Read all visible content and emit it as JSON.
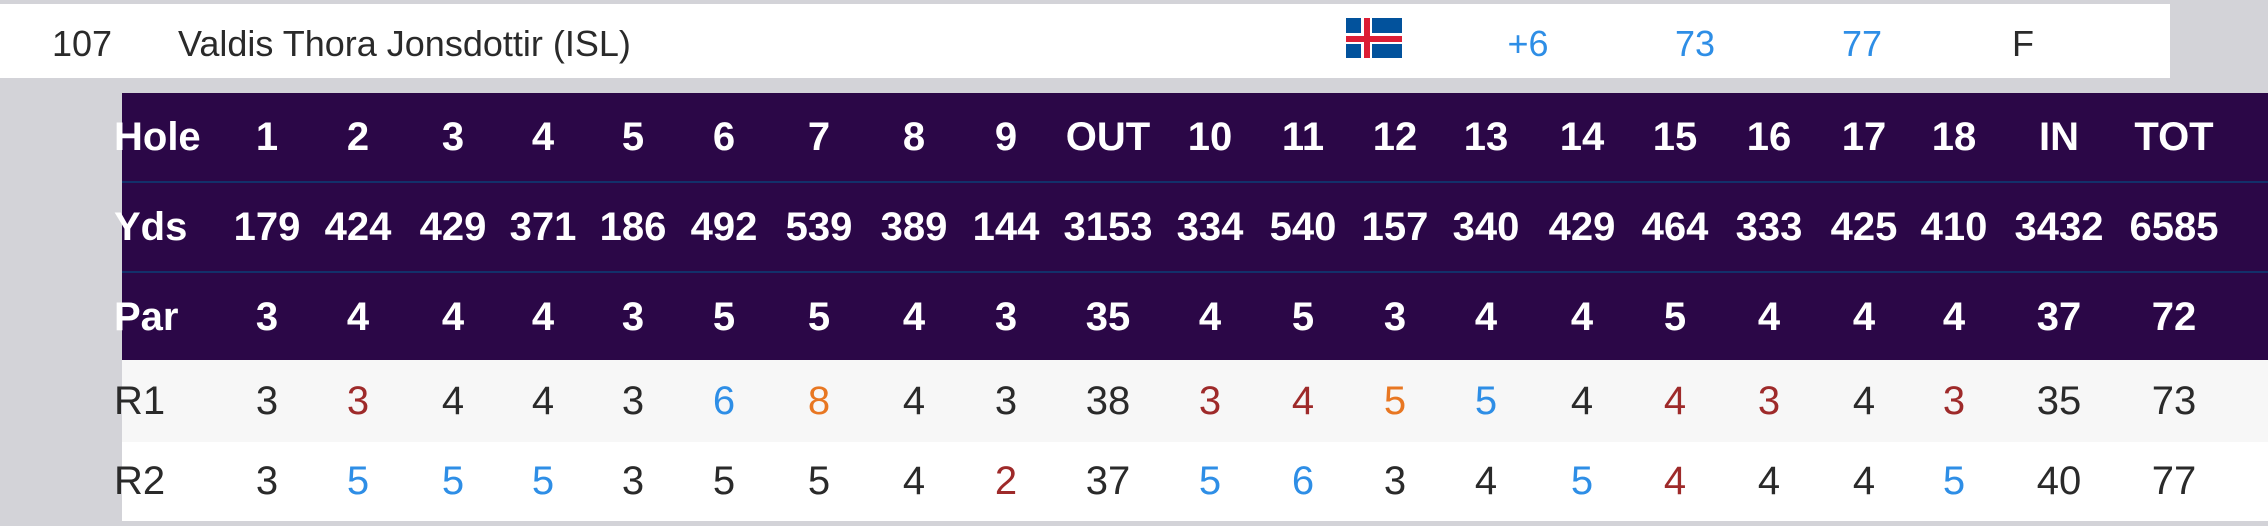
{
  "player": {
    "position": "107",
    "name": "Valdis Thora Jonsdottir (ISL)",
    "country_flag": "iceland-flag-icon",
    "to_par": "+6",
    "round1_total": "73",
    "round2_total": "77",
    "status": "F"
  },
  "scorecard": {
    "columns": [
      "Hole",
      "1",
      "2",
      "3",
      "4",
      "5",
      "6",
      "7",
      "8",
      "9",
      "OUT",
      "10",
      "11",
      "12",
      "13",
      "14",
      "15",
      "16",
      "17",
      "18",
      "IN",
      "TOT"
    ],
    "rows": [
      {
        "label": "Yds",
        "values": [
          "179",
          "424",
          "429",
          "371",
          "186",
          "492",
          "539",
          "389",
          "144",
          "3153",
          "334",
          "540",
          "157",
          "340",
          "429",
          "464",
          "333",
          "425",
          "410",
          "3432",
          "6585"
        ]
      },
      {
        "label": "Par",
        "values": [
          "3",
          "4",
          "4",
          "4",
          "3",
          "5",
          "5",
          "4",
          "3",
          "35",
          "4",
          "5",
          "3",
          "4",
          "4",
          "5",
          "4",
          "4",
          "4",
          "37",
          "72"
        ]
      },
      {
        "label": "R1",
        "values": [
          "3",
          "3",
          "4",
          "4",
          "3",
          "6",
          "8",
          "4",
          "3",
          "38",
          "3",
          "4",
          "5",
          "5",
          "4",
          "4",
          "3",
          "4",
          "3",
          "35",
          "73"
        ]
      },
      {
        "label": "R2",
        "values": [
          "3",
          "5",
          "5",
          "5",
          "3",
          "5",
          "5",
          "4",
          "2",
          "37",
          "5",
          "6",
          "3",
          "4",
          "5",
          "4",
          "4",
          "4",
          "5",
          "40",
          "77"
        ]
      }
    ]
  },
  "colors": {
    "header_bg": "#2b0747",
    "header_text": "#ffffff",
    "par": "#2a2a2a",
    "birdie": "#9e2a2a",
    "bogey": "#2e8ee6",
    "double_bogey": "#e87722",
    "stat_blue": "#2e8ee6"
  }
}
